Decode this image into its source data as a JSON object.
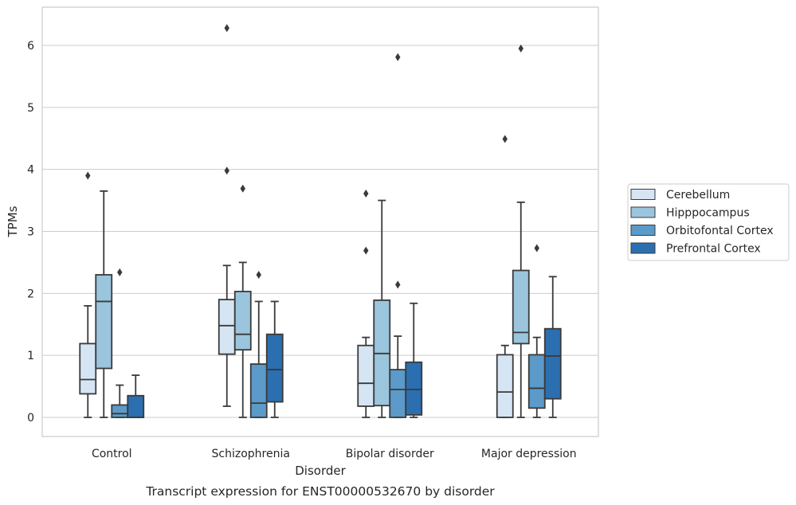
{
  "caption": "Transcript expression for ENST00000532670 by disorder",
  "chart_data": {
    "type": "boxplot",
    "title": "",
    "xlabel": "Disorder",
    "ylabel": "TPMs",
    "ylim": [
      -0.3,
      6.6
    ],
    "yticks": [
      0,
      1,
      2,
      3,
      4,
      5,
      6
    ],
    "grid": "horizontal",
    "legend_position": "outside-right",
    "categories": [
      "Control",
      "Schizophrenia",
      "Bipolar disorder",
      "Major depression"
    ],
    "series": [
      {
        "name": "Cerebellum",
        "color": "#d6e5f4",
        "boxes": [
          {
            "whislo": 0.0,
            "q1": 0.38,
            "med": 0.61,
            "q3": 1.19,
            "whishi": 1.8,
            "fliers": [
              3.9
            ]
          },
          {
            "whislo": 0.18,
            "q1": 1.02,
            "med": 1.48,
            "q3": 1.9,
            "whishi": 2.45,
            "fliers": [
              6.28,
              3.98
            ]
          },
          {
            "whislo": 0.0,
            "q1": 0.18,
            "med": 0.55,
            "q3": 1.16,
            "whishi": 1.29,
            "fliers": [
              3.61,
              2.69
            ]
          },
          {
            "whislo": 0.0,
            "q1": 0.0,
            "med": 0.41,
            "q3": 1.01,
            "whishi": 1.16,
            "fliers": [
              4.49
            ]
          }
        ]
      },
      {
        "name": "Hipppocampus",
        "color": "#9ac5dc",
        "boxes": [
          {
            "whislo": 0.0,
            "q1": 0.79,
            "med": 1.87,
            "q3": 2.3,
            "whishi": 3.65,
            "fliers": []
          },
          {
            "whislo": 0.0,
            "q1": 1.09,
            "med": 1.34,
            "q3": 2.03,
            "whishi": 2.5,
            "fliers": [
              3.69
            ]
          },
          {
            "whislo": 0.0,
            "q1": 0.19,
            "med": 1.03,
            "q3": 1.89,
            "whishi": 3.5,
            "fliers": []
          },
          {
            "whislo": 0.0,
            "q1": 1.19,
            "med": 1.37,
            "q3": 2.37,
            "whishi": 3.47,
            "fliers": [
              5.95
            ]
          }
        ]
      },
      {
        "name": "Orbitofontal Cortex",
        "color": "#5b9ac9",
        "boxes": [
          {
            "whislo": 0.0,
            "q1": 0.0,
            "med": 0.06,
            "q3": 0.2,
            "whishi": 0.52,
            "fliers": [
              2.34
            ]
          },
          {
            "whislo": 0.0,
            "q1": 0.0,
            "med": 0.23,
            "q3": 0.86,
            "whishi": 1.87,
            "fliers": [
              2.3
            ]
          },
          {
            "whislo": 0.0,
            "q1": 0.0,
            "med": 0.45,
            "q3": 0.77,
            "whishi": 1.31,
            "fliers": [
              5.81,
              2.14
            ]
          },
          {
            "whislo": 0.0,
            "q1": 0.15,
            "med": 0.47,
            "q3": 1.01,
            "whishi": 1.29,
            "fliers": [
              2.73
            ]
          }
        ]
      },
      {
        "name": "Prefrontal Cortex",
        "color": "#2b6fb0",
        "boxes": [
          {
            "whislo": 0.0,
            "q1": 0.0,
            "med": 0.0,
            "q3": 0.35,
            "whishi": 0.68,
            "fliers": []
          },
          {
            "whislo": 0.0,
            "q1": 0.25,
            "med": 0.77,
            "q3": 1.34,
            "whishi": 1.87,
            "fliers": []
          },
          {
            "whislo": 0.0,
            "q1": 0.04,
            "med": 0.45,
            "q3": 0.89,
            "whishi": 1.84,
            "fliers": []
          },
          {
            "whislo": 0.0,
            "q1": 0.3,
            "med": 0.99,
            "q3": 1.43,
            "whishi": 2.27,
            "fliers": []
          }
        ]
      }
    ]
  }
}
